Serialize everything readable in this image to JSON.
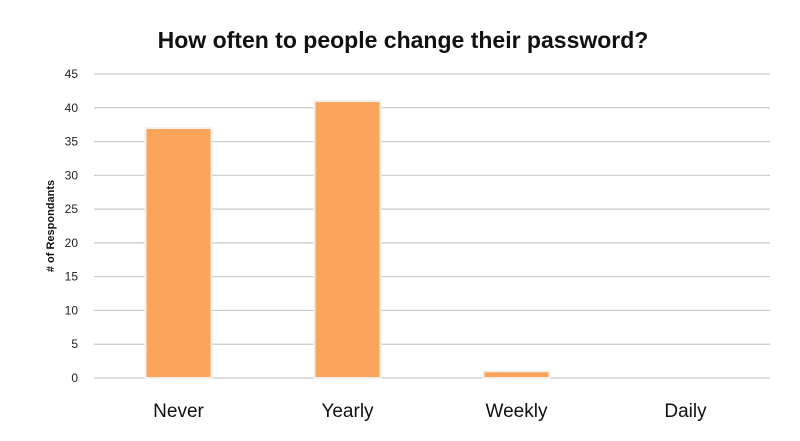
{
  "chart_data": {
    "type": "bar",
    "title": "How often to people change their password?",
    "xlabel": "",
    "ylabel": "# of Respondants",
    "categories": [
      "Never",
      "Yearly",
      "Weekly",
      "Daily"
    ],
    "values": [
      37,
      41,
      1,
      0
    ],
    "ylim": [
      0,
      45
    ],
    "y_ticks": [
      0,
      5,
      10,
      15,
      20,
      25,
      30,
      35,
      40,
      45
    ],
    "grid": true,
    "legend": "none",
    "bar_color": "#FBA45C",
    "bar_edge_color": "#F4F1EC",
    "grid_color": "#C9C9C9"
  }
}
